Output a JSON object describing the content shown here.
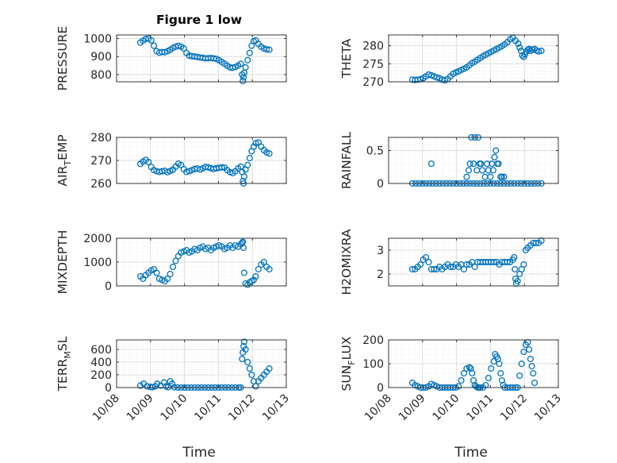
{
  "figure": {
    "title": "Figure 1 low",
    "xlabel": "Time"
  },
  "x_tick_labels": [
    "10/08",
    "10/09",
    "10/10",
    "10/11",
    "10/12",
    "10/13"
  ],
  "colors": {
    "marker": "#0072BD",
    "axis": "#262626",
    "grid_major": "#dfdfdf",
    "grid_minor": "#ededed"
  },
  "chart_data": [
    {
      "type": "scatter",
      "ylabel": "PRESSURE",
      "ylim": [
        760,
        1020
      ],
      "yticks": [
        800,
        900,
        1000
      ],
      "grid": true,
      "x": [
        0.7,
        0.78,
        0.86,
        0.94,
        1.02,
        1.1,
        1.18,
        1.26,
        1.34,
        1.42,
        1.5,
        1.58,
        1.66,
        1.74,
        1.82,
        1.9,
        1.98,
        2.06,
        2.14,
        2.22,
        2.3,
        2.38,
        2.46,
        2.54,
        2.62,
        2.7,
        2.78,
        2.86,
        2.94,
        3.02,
        3.1,
        3.18,
        3.26,
        3.34,
        3.42,
        3.5,
        3.58,
        3.66,
        3.7,
        3.72,
        3.74,
        3.76,
        3.8,
        3.86,
        3.92,
        3.98,
        4.04,
        4.1,
        4.18,
        4.26,
        4.34,
        4.42,
        4.5
      ],
      "y": [
        978,
        988,
        998,
        1000,
        990,
        960,
        930,
        922,
        925,
        924,
        930,
        938,
        948,
        955,
        960,
        955,
        945,
        920,
        905,
        902,
        900,
        898,
        895,
        893,
        890,
        891,
        892,
        890,
        887,
        880,
        870,
        860,
        850,
        840,
        838,
        842,
        850,
        860,
        800,
        765,
        785,
        810,
        840,
        880,
        920,
        960,
        985,
        990,
        970,
        955,
        945,
        940,
        938
      ]
    },
    {
      "type": "scatter",
      "ylabel": "THETA",
      "ylim": [
        270,
        283
      ],
      "yticks": [
        270,
        275,
        280
      ],
      "grid": true,
      "x": [
        0.7,
        0.78,
        0.86,
        0.94,
        1.02,
        1.1,
        1.18,
        1.26,
        1.34,
        1.42,
        1.5,
        1.58,
        1.66,
        1.74,
        1.82,
        1.9,
        1.98,
        2.06,
        2.14,
        2.22,
        2.3,
        2.38,
        2.46,
        2.54,
        2.62,
        2.7,
        2.78,
        2.86,
        2.94,
        3.02,
        3.1,
        3.18,
        3.26,
        3.34,
        3.42,
        3.5,
        3.58,
        3.66,
        3.74,
        3.82,
        3.86,
        3.9,
        3.94,
        3.98,
        4.02,
        4.06,
        4.1,
        4.14,
        4.18,
        4.24,
        4.3,
        4.36,
        4.42,
        4.5
      ],
      "y": [
        270.6,
        270.5,
        270.6,
        270.7,
        271.0,
        271.5,
        272.0,
        271.8,
        271.5,
        271.2,
        271.0,
        270.6,
        270.4,
        270.8,
        271.5,
        272.2,
        272.6,
        272.9,
        273.3,
        273.6,
        274.0,
        274.6,
        275.2,
        275.6,
        276.1,
        276.6,
        277.1,
        277.5,
        277.9,
        278.3,
        278.7,
        279.1,
        279.5,
        279.9,
        280.4,
        281.0,
        281.8,
        282.2,
        281.4,
        280.6,
        279.5,
        278.6,
        277.3,
        276.9,
        277.6,
        278.4,
        278.9,
        279.1,
        278.6,
        278.9,
        279.1,
        278.7,
        278.4,
        278.6
      ]
    },
    {
      "type": "scatter",
      "ylabel": "AIR_TEMP",
      "ylim": [
        260,
        280
      ],
      "yticks": [
        260,
        270,
        280
      ],
      "grid": true,
      "x": [
        0.7,
        0.78,
        0.86,
        0.94,
        1.02,
        1.1,
        1.18,
        1.26,
        1.34,
        1.42,
        1.5,
        1.58,
        1.66,
        1.74,
        1.82,
        1.9,
        1.98,
        2.06,
        2.14,
        2.22,
        2.3,
        2.38,
        2.46,
        2.54,
        2.62,
        2.7,
        2.78,
        2.86,
        2.94,
        3.02,
        3.1,
        3.18,
        3.26,
        3.34,
        3.42,
        3.5,
        3.58,
        3.66,
        3.7,
        3.72,
        3.74,
        3.76,
        3.8,
        3.86,
        3.92,
        3.98,
        4.04,
        4.1,
        4.18,
        4.26,
        4.34,
        4.42,
        4.5
      ],
      "y": [
        268.5,
        269.5,
        270.2,
        269.3,
        267.2,
        265.8,
        265.3,
        265.0,
        265.3,
        265.5,
        264.9,
        265.4,
        266.0,
        267.3,
        268.6,
        268.0,
        266.2,
        265.0,
        265.3,
        265.8,
        266.3,
        266.5,
        266.0,
        266.6,
        267.2,
        267.0,
        266.6,
        266.3,
        266.6,
        266.8,
        267.0,
        266.9,
        265.8,
        264.9,
        264.5,
        265.3,
        266.5,
        267.3,
        265.0,
        261.0,
        260.0,
        263.0,
        266.0,
        268.0,
        271.0,
        274.0,
        276.0,
        277.5,
        277.8,
        276.0,
        274.5,
        273.5,
        273.0
      ]
    },
    {
      "type": "scatter",
      "ylabel": "RAINFALL",
      "ylim": [
        0,
        0.7
      ],
      "yticks": [
        0,
        0.5
      ],
      "grid": true,
      "x": [
        0.7,
        0.8,
        0.9,
        1.0,
        1.1,
        1.2,
        1.3,
        1.4,
        1.5,
        1.6,
        1.7,
        1.8,
        1.9,
        2.0,
        2.1,
        2.2,
        2.3,
        2.4,
        2.5,
        2.6,
        2.7,
        2.8,
        2.9,
        3.0,
        3.1,
        3.2,
        3.3,
        3.4,
        3.5,
        3.6,
        3.7,
        3.8,
        3.9,
        4.0,
        4.1,
        4.2,
        4.3,
        4.4,
        4.5,
        1.26,
        2.3,
        2.36,
        2.4,
        2.44,
        2.5,
        2.54,
        2.6,
        2.64,
        2.68,
        2.72,
        2.76,
        2.84,
        2.9,
        2.94,
        3.0,
        3.04,
        3.08,
        3.12,
        3.16,
        3.2,
        3.24,
        3.3,
        3.34,
        3.4
      ],
      "y": [
        0,
        0,
        0,
        0,
        0,
        0,
        0,
        0,
        0,
        0,
        0,
        0,
        0,
        0,
        0,
        0,
        0,
        0,
        0,
        0,
        0,
        0,
        0,
        0,
        0,
        0,
        0,
        0,
        0,
        0,
        0,
        0,
        0,
        0,
        0,
        0,
        0,
        0,
        0,
        0.3,
        0.1,
        0.2,
        0.3,
        0.7,
        0.3,
        0.7,
        0.2,
        0.7,
        0.3,
        0.3,
        0.2,
        0.1,
        0.3,
        0.2,
        0.1,
        0.3,
        0.2,
        0.4,
        0.5,
        0.3,
        0.3,
        0.1,
        0.1,
        0.1
      ]
    },
    {
      "type": "scatter",
      "ylabel": "MIXDEPTH",
      "ylim": [
        0,
        2000
      ],
      "yticks": [
        0,
        1000,
        2000
      ],
      "grid": true,
      "x": [
        0.7,
        0.78,
        0.86,
        0.94,
        1.02,
        1.1,
        1.18,
        1.26,
        1.34,
        1.42,
        1.5,
        1.58,
        1.66,
        1.74,
        1.82,
        1.9,
        1.98,
        2.06,
        2.14,
        2.22,
        2.3,
        2.38,
        2.46,
        2.54,
        2.62,
        2.7,
        2.78,
        2.86,
        2.94,
        3.02,
        3.1,
        3.18,
        3.26,
        3.34,
        3.42,
        3.5,
        3.58,
        3.66,
        3.7,
        3.72,
        3.74,
        3.76,
        3.8,
        3.86,
        3.92,
        3.98,
        4.04,
        4.1,
        4.18,
        4.26,
        4.34,
        4.42,
        4.5
      ],
      "y": [
        400,
        300,
        450,
        550,
        650,
        700,
        550,
        300,
        250,
        200,
        300,
        500,
        800,
        1050,
        1250,
        1400,
        1450,
        1500,
        1400,
        1450,
        1550,
        1500,
        1600,
        1650,
        1550,
        1600,
        1500,
        1600,
        1650,
        1700,
        1650,
        1550,
        1600,
        1700,
        1600,
        1700,
        1650,
        1750,
        1800,
        1850,
        1600,
        550,
        100,
        50,
        150,
        200,
        250,
        400,
        700,
        900,
        1000,
        800,
        700
      ]
    }
  ]
}
